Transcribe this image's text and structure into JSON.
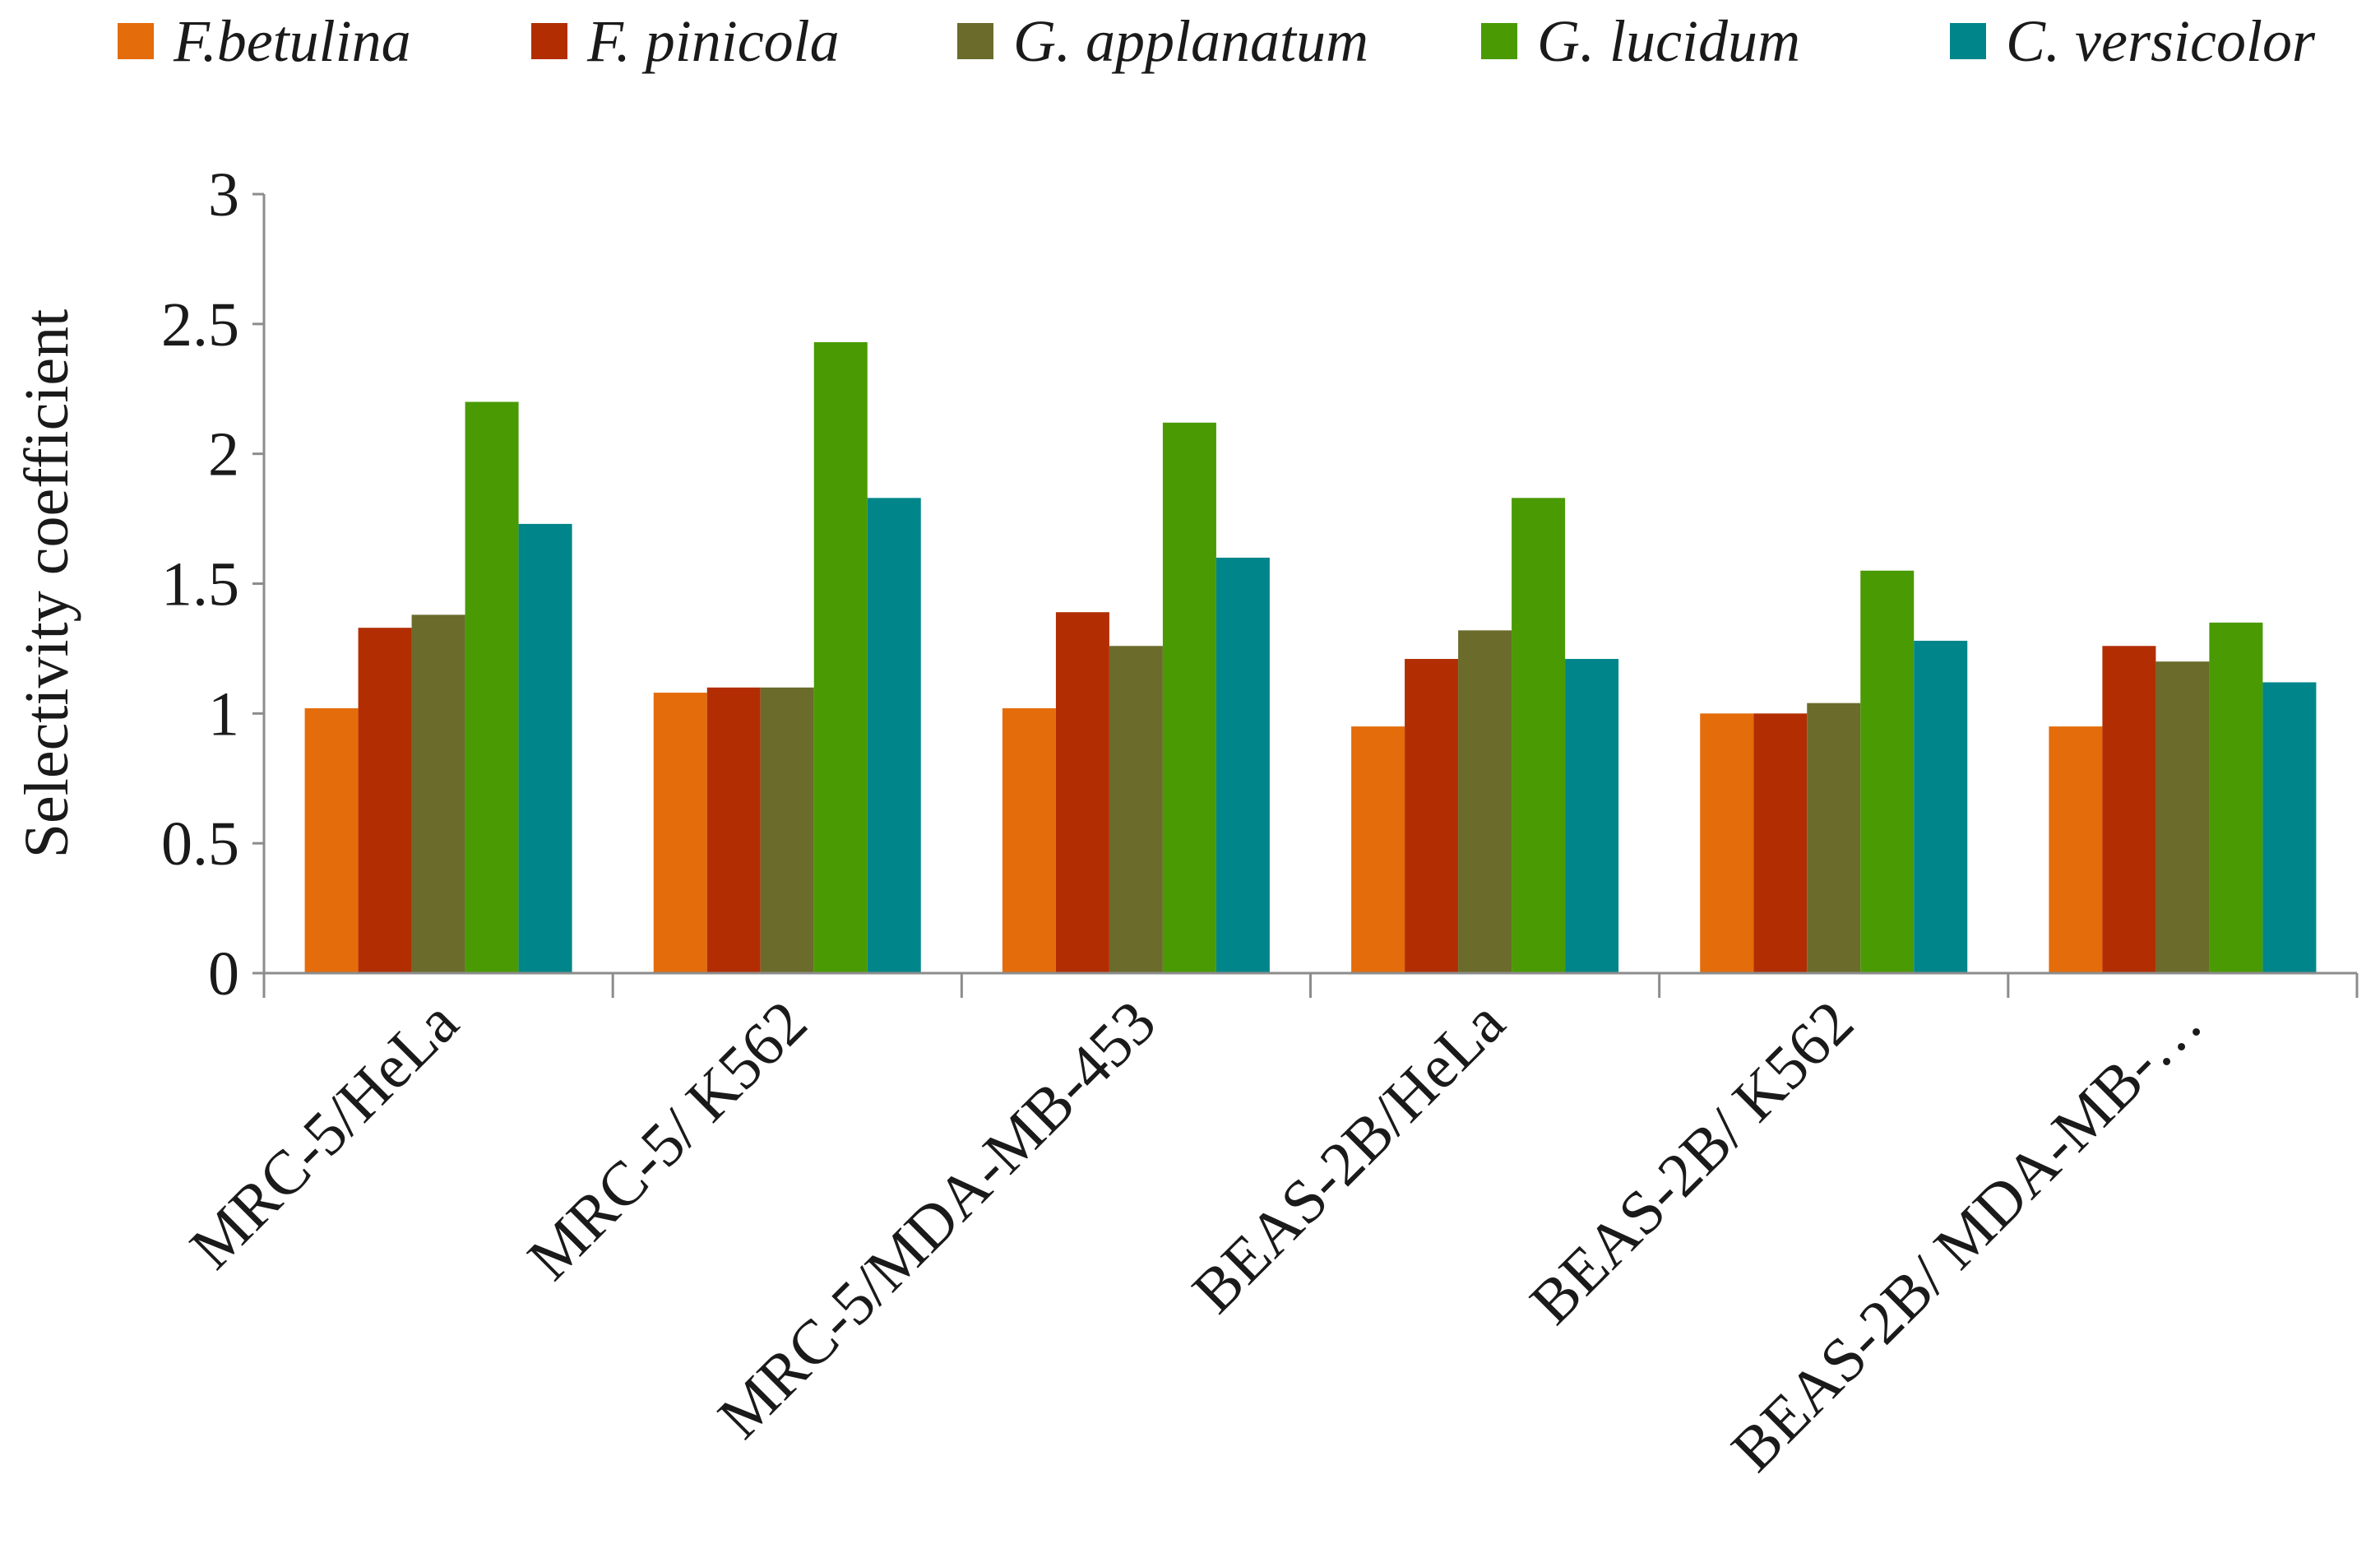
{
  "chart_data": {
    "type": "bar",
    "title": "",
    "xlabel": "",
    "ylabel": "Selectivity coefficient",
    "ylim": [
      0,
      3
    ],
    "yticks": [
      "0",
      "0.5",
      "1",
      "1.5",
      "2",
      "2.5",
      "3"
    ],
    "grid": false,
    "legend_position": "top",
    "categories": [
      "MRC-5/HeLa",
      "MRC-5/ K562",
      "MRC-5/MDA-MB-453",
      "BEAS-2B/HeLa",
      "BEAS-2B/ K562",
      "BEAS-2B/ MDA-MB-…"
    ],
    "series": [
      {
        "name": "F.betulina",
        "color": "#e46c0a",
        "values": [
          1.02,
          1.08,
          1.02,
          0.95,
          1.0,
          0.95
        ]
      },
      {
        "name": "F. pinicola",
        "color": "#b22e02",
        "values": [
          1.33,
          1.1,
          1.39,
          1.21,
          1.0,
          1.26
        ]
      },
      {
        "name": "G. applanatum",
        "color": "#6b6b2c",
        "values": [
          1.38,
          1.1,
          1.26,
          1.32,
          1.04,
          1.2
        ]
      },
      {
        "name": "G. lucidum",
        "color": "#4a9a04",
        "values": [
          2.2,
          2.43,
          2.12,
          1.83,
          1.55,
          1.35
        ]
      },
      {
        "name": "C. versicolor",
        "color": "#00868a",
        "values": [
          1.73,
          1.83,
          1.6,
          1.21,
          1.28,
          1.12
        ]
      }
    ]
  }
}
